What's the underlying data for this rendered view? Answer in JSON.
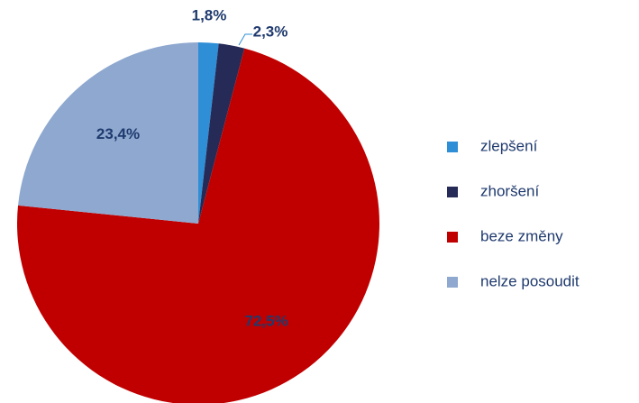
{
  "chart_data": {
    "type": "pie",
    "categories": [
      "zlepšení",
      "zhoršení",
      "beze změny",
      "nelze posoudit"
    ],
    "values": [
      1.8,
      2.3,
      72.5,
      23.4
    ],
    "value_labels": [
      "1,8%",
      "2,3%",
      "72,5%",
      "23,4%"
    ],
    "colors": [
      "#2e8ed6",
      "#262a56",
      "#c00000",
      "#8ea8cf"
    ],
    "legend": "right"
  }
}
